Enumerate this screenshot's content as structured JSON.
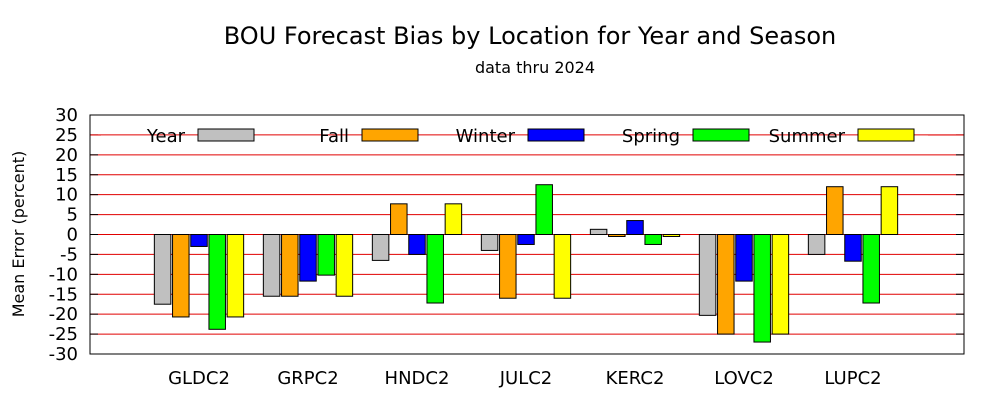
{
  "chart_data": {
    "type": "bar",
    "title": "BOU Forecast Bias by Location for Year and Season",
    "subtitle": "data thru 2024",
    "xlabel": "",
    "ylabel": "Mean Error (percent)",
    "ylim": [
      -30,
      30
    ],
    "yticks": [
      30,
      25,
      20,
      15,
      10,
      5,
      0,
      -5,
      -10,
      -15,
      -20,
      -25,
      -30
    ],
    "grid": true,
    "legend_position": "top",
    "categories": [
      "GLDC2",
      "GRPC2",
      "HNDC2",
      "JULC2",
      "KERC2",
      "LOVC2",
      "LUPC2"
    ],
    "series": [
      {
        "name": "Year",
        "color": "#c0c0c0",
        "values": [
          -17.5,
          -15.5,
          -6.5,
          -4,
          1.3,
          -20.3,
          -5
        ]
      },
      {
        "name": "Fall",
        "color": "#ffa500",
        "values": [
          -20.7,
          -15.5,
          7.7,
          -16,
          -0.5,
          -25,
          12
        ]
      },
      {
        "name": "Winter",
        "color": "#0000ff",
        "values": [
          -3,
          -11.7,
          -5,
          -2.5,
          3.5,
          -11.7,
          -6.7
        ]
      },
      {
        "name": "Spring",
        "color": "#00ff00",
        "values": [
          -23.8,
          -10.2,
          -17.2,
          12.5,
          -2.5,
          -27,
          -17.2
        ]
      },
      {
        "name": "Summer",
        "color": "#ffff00",
        "values": [
          -20.7,
          -15.5,
          7.7,
          -16,
          -0.5,
          -25,
          12
        ]
      }
    ]
  }
}
